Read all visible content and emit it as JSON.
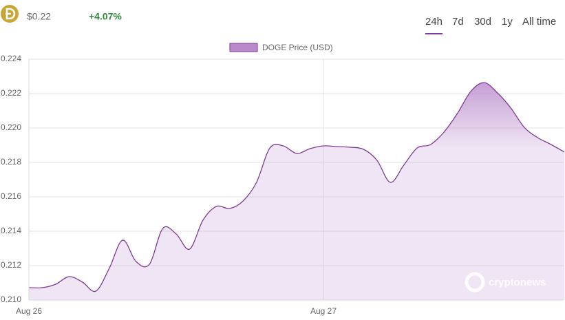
{
  "header": {
    "price": "$0.22",
    "change": "+4.07%"
  },
  "tabs": [
    "24h",
    "7d",
    "30d",
    "1y",
    "All time"
  ],
  "watermark": "cryptonews",
  "chart_data": {
    "type": "line",
    "categories": [
      "Aug 26",
      null,
      null,
      null,
      null,
      null,
      null,
      null,
      null,
      null,
      null,
      null,
      null,
      null,
      null,
      null,
      null,
      null,
      null,
      null,
      null,
      null,
      "Aug 27",
      null,
      null,
      null,
      null,
      null,
      null,
      null,
      null,
      null,
      null,
      null,
      null,
      null,
      null,
      null,
      null,
      null,
      null
    ],
    "series": [
      {
        "name": "DOGE Price (USD)",
        "color": "#7e3a94",
        "fill": "#b98acb",
        "values": [
          0.21072,
          0.21072,
          0.21092,
          0.21136,
          0.21104,
          0.21052,
          0.21184,
          0.21348,
          0.21224,
          0.21208,
          0.21416,
          0.21384,
          0.21296,
          0.21464,
          0.21544,
          0.21532,
          0.21576,
          0.21684,
          0.21884,
          0.21896,
          0.21852,
          0.2188,
          0.21896,
          0.21892,
          0.21888,
          0.21876,
          0.21812,
          0.21684,
          0.21784,
          0.21884,
          0.21904,
          0.21976,
          0.22084,
          0.22212,
          0.22264,
          0.22204,
          0.22116,
          0.22004,
          0.21944,
          0.21904,
          0.2186
        ]
      }
    ],
    "ylim": [
      0.21,
      0.224
    ],
    "yticks": [
      {
        "value": 0.21,
        "label": "0.210"
      },
      0.212,
      0.214,
      0.216,
      0.218,
      {
        "value": 0.22,
        "label": "0.220"
      },
      0.222,
      0.224
    ],
    "grid": true
  }
}
